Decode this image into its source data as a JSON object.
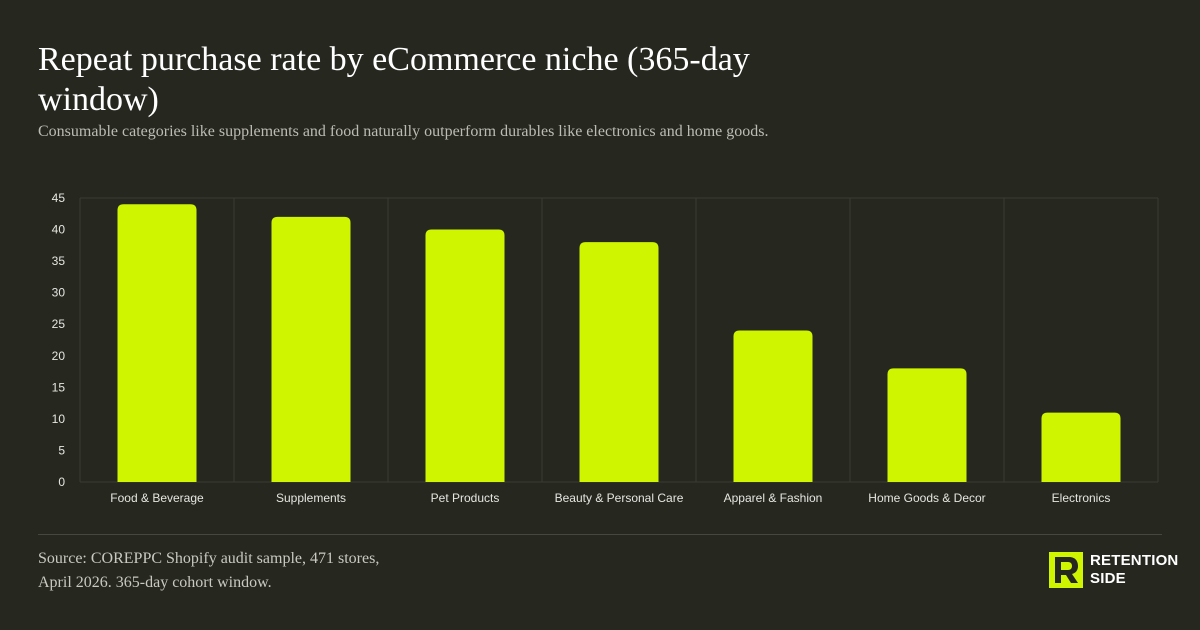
{
  "header": {
    "title": "Repeat purchase rate by eCommerce niche (365-day window)",
    "subtitle": "Consumable categories like supplements and food naturally outperform durables like electronics and home goods."
  },
  "chart_data": {
    "type": "bar",
    "title": "Repeat purchase rate by eCommerce niche (365-day window)",
    "subtitle": "Consumable categories like supplements and food naturally outperform durables like electronics and home goods.",
    "categories": [
      "Food & Beverage",
      "Supplements",
      "Pet Products",
      "Beauty & Personal Care",
      "Apparel & Fashion",
      "Home Goods & Decor",
      "Electronics"
    ],
    "values": [
      44,
      42,
      40,
      38,
      24,
      18,
      11
    ],
    "xlabel": "",
    "ylabel": "",
    "ylim": [
      0,
      45
    ],
    "yticks": [
      0,
      5,
      10,
      15,
      20,
      25,
      30,
      35,
      40,
      45
    ],
    "grid": "vertical category separators",
    "legend": "none",
    "bar_color": "#cff500"
  },
  "footer": {
    "source_line1": "Source: COREPPC Shopify audit sample, 471 stores,",
    "source_line2": "April 2026. 365-day cohort window."
  },
  "logo": {
    "line1": "RETENTION",
    "line2": "SIDE",
    "accent": "#cff500"
  },
  "colors": {
    "background": "#262820",
    "bar": "#cff500",
    "grid": "#3a3c33"
  }
}
